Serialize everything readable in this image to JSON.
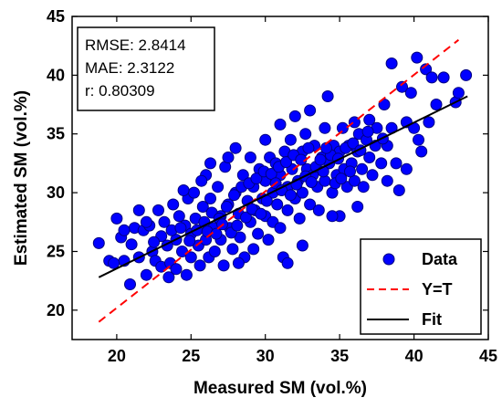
{
  "chart_data": {
    "type": "scatter",
    "xlabel": "Measured SM (vol.%)",
    "ylabel": "Estimated SM (vol.%)",
    "xlim": [
      17,
      45
    ],
    "ylim": [
      17.5,
      45
    ],
    "xticks": [
      "20",
      "25",
      "30",
      "35",
      "40",
      "45"
    ],
    "yticks": [
      "20",
      "25",
      "30",
      "35",
      "40",
      "45"
    ],
    "grid": false,
    "legend_placement": "bottom-right",
    "stats": {
      "rmse": "RMSE: 2.8414",
      "mae": "MAE: 2.3122",
      "r": "r: 0.80309"
    },
    "series": [
      {
        "name": "Data",
        "type": "scatter",
        "color": "#0000ff",
        "edge_color": "#000080",
        "points": [
          [
            18.8,
            25.7
          ],
          [
            19.5,
            24.2
          ],
          [
            20.0,
            27.8
          ],
          [
            20.3,
            26.2
          ],
          [
            20.5,
            24.2
          ],
          [
            20.9,
            22.2
          ],
          [
            21.0,
            25.6
          ],
          [
            21.2,
            27.0
          ],
          [
            21.5,
            24.5
          ],
          [
            21.8,
            26.8
          ],
          [
            22.0,
            23.0
          ],
          [
            22.2,
            27.2
          ],
          [
            22.4,
            25.0
          ],
          [
            22.6,
            24.2
          ],
          [
            22.8,
            28.5
          ],
          [
            23.0,
            26.3
          ],
          [
            23.0,
            23.7
          ],
          [
            23.2,
            27.5
          ],
          [
            23.4,
            25.5
          ],
          [
            23.6,
            24.0
          ],
          [
            23.8,
            29.0
          ],
          [
            24.0,
            26.0
          ],
          [
            24.0,
            23.5
          ],
          [
            24.2,
            28.0
          ],
          [
            24.4,
            25.0
          ],
          [
            24.6,
            27.2
          ],
          [
            24.7,
            23.0
          ],
          [
            24.8,
            29.5
          ],
          [
            25.0,
            26.5
          ],
          [
            25.0,
            24.5
          ],
          [
            25.2,
            30.0
          ],
          [
            25.3,
            27.8
          ],
          [
            25.5,
            25.5
          ],
          [
            25.6,
            23.8
          ],
          [
            25.8,
            28.8
          ],
          [
            26.0,
            26.0
          ],
          [
            26.0,
            31.5
          ],
          [
            26.2,
            24.5
          ],
          [
            26.3,
            29.5
          ],
          [
            26.5,
            27.0
          ],
          [
            26.6,
            25.0
          ],
          [
            26.8,
            30.5
          ],
          [
            27.0,
            28.0
          ],
          [
            27.0,
            26.0
          ],
          [
            27.2,
            23.8
          ],
          [
            27.3,
            32.2
          ],
          [
            27.5,
            29.0
          ],
          [
            27.6,
            27.0
          ],
          [
            27.8,
            25.2
          ],
          [
            28.0,
            33.8
          ],
          [
            28.0,
            30.0
          ],
          [
            28.2,
            28.2
          ],
          [
            28.3,
            26.2
          ],
          [
            28.5,
            31.5
          ],
          [
            28.6,
            24.5
          ],
          [
            28.8,
            29.3
          ],
          [
            29.0,
            27.5
          ],
          [
            29.0,
            33.0
          ],
          [
            29.2,
            30.5
          ],
          [
            29.3,
            28.5
          ],
          [
            29.5,
            26.5
          ],
          [
            29.6,
            32.0
          ],
          [
            29.8,
            29.5
          ],
          [
            30.0,
            34.5
          ],
          [
            30.0,
            31.0
          ],
          [
            30.0,
            28.0
          ],
          [
            30.2,
            26.0
          ],
          [
            30.3,
            33.0
          ],
          [
            30.5,
            30.0
          ],
          [
            30.5,
            27.5
          ],
          [
            30.7,
            32.5
          ],
          [
            30.8,
            29.0
          ],
          [
            31.0,
            35.8
          ],
          [
            31.0,
            31.5
          ],
          [
            31.0,
            27.0
          ],
          [
            31.2,
            24.5
          ],
          [
            31.3,
            33.5
          ],
          [
            31.5,
            30.5
          ],
          [
            31.5,
            28.5
          ],
          [
            31.7,
            34.5
          ],
          [
            31.8,
            32.0
          ],
          [
            32.0,
            29.5
          ],
          [
            32.0,
            36.5
          ],
          [
            32.2,
            31.0
          ],
          [
            32.3,
            27.8
          ],
          [
            32.5,
            33.5
          ],
          [
            32.5,
            30.0
          ],
          [
            32.7,
            35.0
          ],
          [
            32.8,
            32.0
          ],
          [
            33.0,
            29.0
          ],
          [
            33.0,
            37.0
          ],
          [
            33.2,
            31.5
          ],
          [
            33.3,
            34.0
          ],
          [
            33.5,
            30.5
          ],
          [
            33.6,
            28.5
          ],
          [
            33.8,
            33.0
          ],
          [
            34.0,
            31.0
          ],
          [
            34.0,
            35.5
          ],
          [
            34.2,
            38.2
          ],
          [
            34.3,
            32.5
          ],
          [
            34.5,
            30.0
          ],
          [
            34.6,
            34.0
          ],
          [
            34.8,
            31.5
          ],
          [
            35.0,
            33.5
          ],
          [
            35.0,
            28.0
          ],
          [
            35.2,
            35.5
          ],
          [
            35.3,
            32.0
          ],
          [
            35.5,
            30.5
          ],
          [
            35.6,
            34.0
          ],
          [
            35.8,
            32.5
          ],
          [
            36.0,
            36.0
          ],
          [
            36.0,
            31.0
          ],
          [
            36.2,
            33.5
          ],
          [
            36.3,
            35.0
          ],
          [
            36.5,
            32.0
          ],
          [
            36.6,
            30.5
          ],
          [
            36.8,
            34.5
          ],
          [
            37.0,
            33.0
          ],
          [
            37.2,
            31.5
          ],
          [
            37.5,
            35.5
          ],
          [
            37.8,
            32.5
          ],
          [
            38.0,
            37.5
          ],
          [
            38.2,
            34.0
          ],
          [
            38.5,
            41.0
          ],
          [
            38.5,
            35.5
          ],
          [
            38.8,
            32.5
          ],
          [
            39.0,
            30.2
          ],
          [
            39.2,
            39.0
          ],
          [
            39.5,
            36.0
          ],
          [
            39.8,
            38.5
          ],
          [
            40.0,
            35.5
          ],
          [
            40.2,
            41.5
          ],
          [
            40.3,
            34.5
          ],
          [
            40.8,
            40.5
          ],
          [
            41.2,
            39.8
          ],
          [
            41.5,
            37.5
          ],
          [
            42.0,
            39.8
          ],
          [
            42.8,
            37.7
          ],
          [
            43.5,
            40.0
          ],
          [
            43.0,
            38.5
          ],
          [
            22.5,
            25.8
          ],
          [
            23.7,
            26.8
          ],
          [
            24.3,
            27.0
          ],
          [
            24.9,
            25.9
          ],
          [
            25.4,
            26.8
          ],
          [
            25.9,
            27.5
          ],
          [
            26.4,
            28.3
          ],
          [
            26.9,
            27.8
          ],
          [
            27.4,
            28.8
          ],
          [
            27.9,
            29.8
          ],
          [
            28.4,
            30.5
          ],
          [
            28.9,
            30.8
          ],
          [
            29.4,
            31.2
          ],
          [
            29.9,
            31.8
          ],
          [
            30.4,
            31.6
          ],
          [
            30.9,
            32.2
          ],
          [
            31.4,
            32.6
          ],
          [
            31.9,
            33.2
          ],
          [
            32.4,
            32.8
          ],
          [
            32.9,
            33.8
          ],
          [
            33.4,
            32.2
          ],
          [
            33.9,
            31.8
          ],
          [
            34.4,
            33.2
          ],
          [
            34.9,
            32.9
          ],
          [
            35.4,
            33.8
          ],
          [
            35.9,
            34.2
          ],
          [
            36.4,
            33.6
          ],
          [
            36.9,
            35.2
          ],
          [
            37.4,
            34.0
          ],
          [
            37.9,
            34.6
          ],
          [
            26.1,
            26.7
          ],
          [
            26.7,
            26.5
          ],
          [
            27.1,
            27.3
          ],
          [
            27.7,
            26.6
          ],
          [
            28.1,
            27.2
          ],
          [
            28.7,
            27.9
          ],
          [
            29.1,
            28.6
          ],
          [
            29.7,
            28.2
          ],
          [
            30.1,
            29.3
          ],
          [
            30.7,
            30.8
          ],
          [
            31.1,
            30.2
          ],
          [
            31.7,
            29.8
          ],
          [
            32.1,
            30.7
          ],
          [
            32.7,
            31.4
          ],
          [
            33.1,
            30.9
          ],
          [
            33.7,
            32.8
          ],
          [
            34.1,
            33.8
          ],
          [
            34.7,
            30.8
          ],
          [
            35.1,
            31.2
          ],
          [
            35.7,
            31.8
          ],
          [
            21.5,
            28.5
          ],
          [
            22.0,
            27.5
          ],
          [
            23.5,
            22.8
          ],
          [
            24.5,
            30.2
          ],
          [
            25.7,
            31.0
          ],
          [
            26.3,
            32.5
          ],
          [
            27.5,
            33.0
          ],
          [
            28.2,
            24.0
          ],
          [
            29.2,
            25.2
          ],
          [
            31.5,
            24.0
          ],
          [
            32.5,
            25.5
          ],
          [
            34.5,
            28.0
          ],
          [
            36.2,
            28.8
          ],
          [
            37.0,
            36.2
          ],
          [
            38.2,
            31.0
          ],
          [
            39.5,
            32.0
          ],
          [
            40.5,
            33.5
          ],
          [
            41.0,
            36.0
          ],
          [
            20.5,
            26.8
          ],
          [
            19.8,
            24.0
          ]
        ]
      },
      {
        "name": "Y=T",
        "type": "line",
        "color": "#ff0000",
        "dash": true,
        "x": [
          18.8,
          43.0
        ],
        "y": [
          19.0,
          43.0
        ]
      },
      {
        "name": "Fit",
        "type": "line",
        "color": "#000000",
        "dash": false,
        "x": [
          18.8,
          43.6
        ],
        "y": [
          22.8,
          38.2
        ]
      }
    ]
  }
}
